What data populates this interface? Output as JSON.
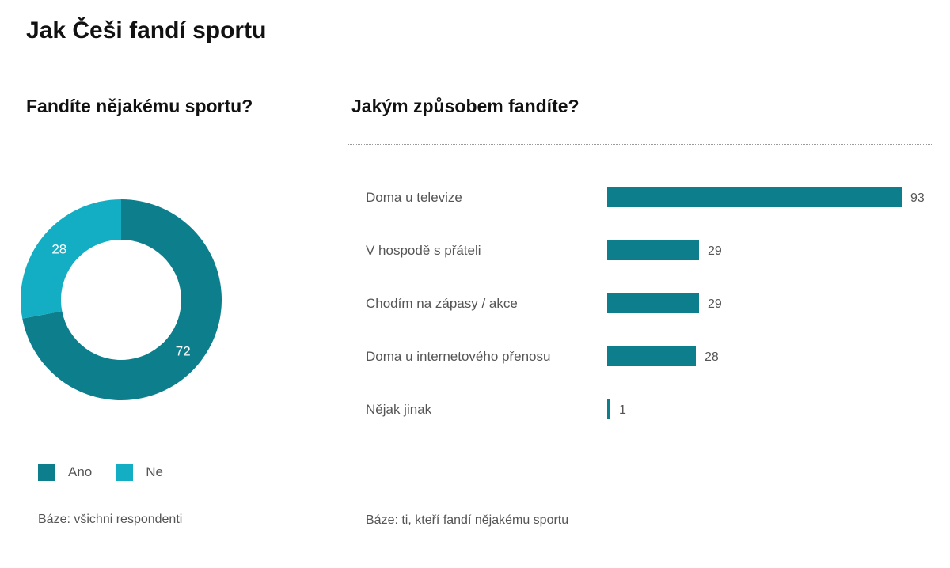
{
  "title": "Jak Češi fandí sportu",
  "chart_data": [
    {
      "type": "pie",
      "style": "donut",
      "title": "Fandíte nějakému sportu?",
      "categories": [
        "Ano",
        "Ne"
      ],
      "values": [
        72,
        28
      ],
      "colors": [
        "#0d7f8c",
        "#14aec4"
      ],
      "legend": "bottom-left",
      "note": "Báze: všichni respondenti"
    },
    {
      "type": "bar",
      "orientation": "horizontal",
      "title": "Jakým způsobem fandíte?",
      "categories": [
        "Doma u televize",
        "V hospodě s přáteli",
        "Chodím na zápasy / akce",
        "Doma u internetového přenosu",
        "Nějak jinak"
      ],
      "values": [
        93,
        29,
        29,
        28,
        1
      ],
      "xlim": [
        0,
        93
      ],
      "color": "#0d7f8c",
      "grid": false,
      "note": "Báze: ti, kteří fandí nějakému sportu"
    }
  ]
}
